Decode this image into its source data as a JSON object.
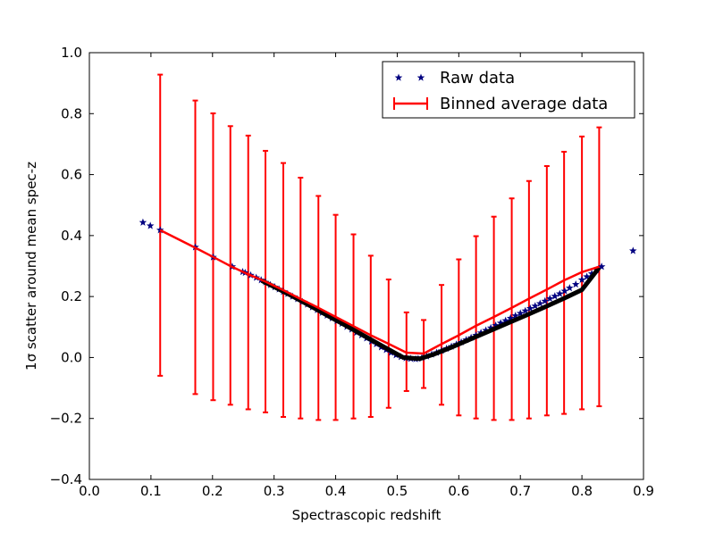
{
  "chart_data": {
    "type": "scatter",
    "xlabel": "Spectrascopic redshift",
    "ylabel": "1σ scatter around mean spec-z",
    "xlim": [
      0.0,
      0.9
    ],
    "ylim": [
      -0.4,
      1.0
    ],
    "x_ticks": [
      "0.0",
      "0.1",
      "0.2",
      "0.3",
      "0.4",
      "0.5",
      "0.6",
      "0.7",
      "0.8",
      "0.9"
    ],
    "y_ticks": [
      "−0.4",
      "−0.2",
      "0.0",
      "0.2",
      "0.4",
      "0.6",
      "0.8",
      "1.0"
    ],
    "legend_position": "top-right",
    "series": [
      {
        "name": "Raw data",
        "marker": "star",
        "color": "#000080",
        "points": [
          [
            0.087,
            0.443
          ],
          [
            0.099,
            0.432
          ],
          [
            0.115,
            0.418
          ],
          [
            0.172,
            0.362
          ],
          [
            0.201,
            0.329
          ],
          [
            0.232,
            0.298
          ],
          [
            0.249,
            0.281
          ],
          [
            0.253,
            0.278
          ],
          [
            0.262,
            0.27
          ],
          [
            0.271,
            0.262
          ],
          [
            0.279,
            0.254
          ],
          [
            0.286,
            0.247
          ],
          [
            0.294,
            0.238
          ],
          [
            0.301,
            0.231
          ],
          [
            0.308,
            0.224
          ],
          [
            0.315,
            0.216
          ],
          [
            0.322,
            0.209
          ],
          [
            0.33,
            0.2
          ],
          [
            0.338,
            0.192
          ],
          [
            0.346,
            0.183
          ],
          [
            0.354,
            0.174
          ],
          [
            0.362,
            0.165
          ],
          [
            0.37,
            0.156
          ],
          [
            0.378,
            0.147
          ],
          [
            0.386,
            0.138
          ],
          [
            0.394,
            0.129
          ],
          [
            0.402,
            0.12
          ],
          [
            0.41,
            0.111
          ],
          [
            0.418,
            0.101
          ],
          [
            0.426,
            0.092
          ],
          [
            0.434,
            0.082
          ],
          [
            0.442,
            0.073
          ],
          [
            0.45,
            0.063
          ],
          [
            0.458,
            0.053
          ],
          [
            0.466,
            0.044
          ],
          [
            0.474,
            0.034
          ],
          [
            0.482,
            0.025
          ],
          [
            0.49,
            0.016
          ],
          [
            0.498,
            0.008
          ],
          [
            0.506,
            0.002
          ],
          [
            0.514,
            -0.002
          ],
          [
            0.522,
            -0.004
          ],
          [
            0.53,
            -0.005
          ],
          [
            0.534,
            -0.004
          ],
          [
            0.54,
            -0.001
          ],
          [
            0.548,
            0.004
          ],
          [
            0.556,
            0.01
          ],
          [
            0.564,
            0.016
          ],
          [
            0.572,
            0.022
          ],
          [
            0.58,
            0.029
          ],
          [
            0.588,
            0.036
          ],
          [
            0.596,
            0.043
          ],
          [
            0.604,
            0.05
          ],
          [
            0.612,
            0.058
          ],
          [
            0.62,
            0.065
          ],
          [
            0.628,
            0.073
          ],
          [
            0.636,
            0.081
          ],
          [
            0.644,
            0.089
          ],
          [
            0.652,
            0.097
          ],
          [
            0.66,
            0.105
          ],
          [
            0.668,
            0.113
          ],
          [
            0.676,
            0.121
          ],
          [
            0.684,
            0.129
          ],
          [
            0.692,
            0.137
          ],
          [
            0.7,
            0.145
          ],
          [
            0.708,
            0.153
          ],
          [
            0.716,
            0.161
          ],
          [
            0.724,
            0.169
          ],
          [
            0.732,
            0.177
          ],
          [
            0.74,
            0.185
          ],
          [
            0.748,
            0.193
          ],
          [
            0.756,
            0.201
          ],
          [
            0.764,
            0.209
          ],
          [
            0.772,
            0.218
          ],
          [
            0.78,
            0.228
          ],
          [
            0.79,
            0.24
          ],
          [
            0.8,
            0.255
          ],
          [
            0.808,
            0.265
          ],
          [
            0.816,
            0.275
          ],
          [
            0.824,
            0.287
          ],
          [
            0.832,
            0.298
          ],
          [
            0.883,
            0.35
          ]
        ]
      },
      {
        "name": "Binned average data",
        "color": "#ff0000",
        "x": [
          0.115,
          0.172,
          0.201,
          0.229,
          0.258,
          0.286,
          0.315,
          0.343,
          0.372,
          0.4,
          0.429,
          0.457,
          0.486,
          0.515,
          0.543,
          0.572,
          0.6,
          0.628,
          0.657,
          0.686,
          0.714,
          0.743,
          0.771,
          0.8,
          0.828
        ],
        "y": [
          0.418,
          0.36,
          0.33,
          0.3,
          0.273,
          0.249,
          0.221,
          0.192,
          0.163,
          0.133,
          0.103,
          0.073,
          0.045,
          0.016,
          0.013,
          0.044,
          0.073,
          0.104,
          0.133,
          0.163,
          0.193,
          0.223,
          0.253,
          0.28,
          0.298
        ],
        "err_low": [
          -0.06,
          -0.12,
          -0.14,
          -0.155,
          -0.17,
          -0.18,
          -0.195,
          -0.2,
          -0.205,
          -0.205,
          -0.2,
          -0.195,
          -0.165,
          -0.11,
          -0.1,
          -0.155,
          -0.19,
          -0.2,
          -0.205,
          -0.205,
          -0.2,
          -0.19,
          -0.185,
          -0.17,
          -0.16
        ],
        "err_high": [
          0.928,
          0.843,
          0.801,
          0.759,
          0.728,
          0.678,
          0.638,
          0.59,
          0.53,
          0.468,
          0.404,
          0.334,
          0.256,
          0.148,
          0.123,
          0.238,
          0.322,
          0.398,
          0.462,
          0.522,
          0.579,
          0.628,
          0.675,
          0.725,
          0.755
        ]
      }
    ],
    "black_line": {
      "color": "#000000",
      "x": [
        0.28,
        0.3,
        0.33,
        0.36,
        0.39,
        0.42,
        0.45,
        0.48,
        0.51,
        0.53,
        0.537,
        0.56,
        0.59,
        0.62,
        0.65,
        0.68,
        0.71,
        0.74,
        0.77,
        0.8,
        0.828
      ],
      "y": [
        0.252,
        0.232,
        0.201,
        0.168,
        0.134,
        0.101,
        0.067,
        0.033,
        0.0,
        -0.003,
        -0.004,
        0.011,
        0.035,
        0.061,
        0.087,
        0.113,
        0.139,
        0.166,
        0.193,
        0.222,
        0.295
      ]
    }
  }
}
